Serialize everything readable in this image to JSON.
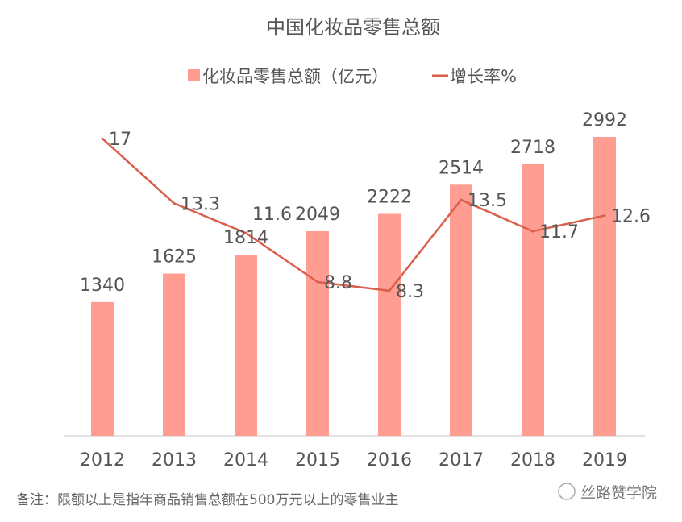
{
  "chart_data": {
    "type": "bar",
    "title": "中国化妆品零售总额",
    "categories": [
      "2012",
      "2013",
      "2014",
      "2015",
      "2016",
      "2017",
      "2018",
      "2019"
    ],
    "series": [
      {
        "name": "化妆品零售总额（亿元）",
        "type": "bar",
        "axis": "left",
        "values": [
          1340,
          1625,
          1814,
          2049,
          2222,
          2514,
          2718,
          2992
        ]
      },
      {
        "name": "增长率%",
        "type": "line",
        "axis": "right",
        "values": [
          17,
          13.3,
          11.6,
          8.8,
          8.3,
          13.5,
          11.7,
          12.6
        ]
      }
    ],
    "legend_position": "top",
    "grid": false,
    "xlabel": "",
    "ylabel": "",
    "colors": {
      "bar": "#FF9D92",
      "line": "#D9604C"
    }
  },
  "footer": {
    "note": "备注：限额以上是指年商品销售总额在500万元以上的零售业主",
    "watermark": "丝路赞学院"
  }
}
